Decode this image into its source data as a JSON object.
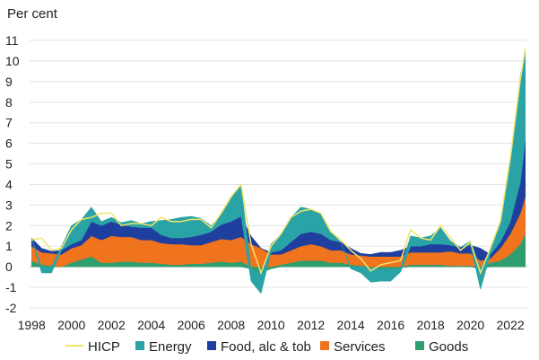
{
  "chart_data": {
    "type": "area",
    "subtype": "stacked",
    "ylabel": "Per cent",
    "ylim": [
      -2,
      11
    ],
    "yticks": [
      -2,
      -1,
      0,
      1,
      2,
      3,
      4,
      5,
      6,
      7,
      8,
      9,
      10,
      11
    ],
    "xlim": [
      1997.9,
      2022.85
    ],
    "xticks": [
      1998,
      2000,
      2002,
      2004,
      2006,
      2008,
      2010,
      2012,
      2014,
      2016,
      2018,
      2020,
      2022
    ],
    "xticklabels": [
      "1998",
      "2000",
      "2002",
      "2004",
      "2006",
      "2008",
      "2010",
      "2012",
      "2014",
      "2016",
      "2018",
      "2020",
      "2022"
    ],
    "grid": "horizontal",
    "legend_position": "bottom",
    "x": [
      1998.0,
      1998.5,
      1999.0,
      1999.5,
      2000.0,
      2000.5,
      2001.0,
      2001.5,
      2002.0,
      2002.5,
      2003.0,
      2003.5,
      2004.0,
      2004.5,
      2005.0,
      2005.5,
      2006.0,
      2006.5,
      2007.0,
      2007.5,
      2008.0,
      2008.5,
      2009.0,
      2009.5,
      2010.0,
      2010.5,
      2011.0,
      2011.5,
      2012.0,
      2012.5,
      2013.0,
      2013.5,
      2014.0,
      2014.5,
      2015.0,
      2015.5,
      2016.0,
      2016.5,
      2017.0,
      2017.5,
      2018.0,
      2018.5,
      2019.0,
      2019.5,
      2020.0,
      2020.5,
      2021.0,
      2021.5,
      2022.0,
      2022.5,
      2022.75
    ],
    "series": [
      {
        "name": "Goods",
        "color": "#2e9e6e",
        "values": [
          0.3,
          0.1,
          0.05,
          0.0,
          0.2,
          0.35,
          0.5,
          0.2,
          0.2,
          0.25,
          0.25,
          0.2,
          0.2,
          0.15,
          0.1,
          0.1,
          0.15,
          0.15,
          0.2,
          0.25,
          0.2,
          0.25,
          -0.1,
          -0.3,
          -0.1,
          0.1,
          0.2,
          0.3,
          0.3,
          0.3,
          0.2,
          0.2,
          0.1,
          0.05,
          -0.05,
          -0.1,
          -0.1,
          -0.05,
          0.1,
          0.1,
          0.1,
          0.1,
          0.05,
          0.05,
          0.05,
          -0.1,
          0.2,
          0.3,
          0.6,
          1.1,
          1.6
        ]
      },
      {
        "name": "Services",
        "color": "#f0731e",
        "values": [
          0.7,
          0.6,
          0.6,
          0.6,
          0.7,
          0.7,
          1.0,
          1.1,
          1.3,
          1.2,
          1.2,
          1.1,
          1.1,
          1.0,
          1.0,
          1.0,
          0.9,
          0.9,
          1.0,
          1.1,
          1.1,
          1.2,
          1.1,
          0.9,
          0.6,
          0.5,
          0.6,
          0.7,
          0.8,
          0.7,
          0.6,
          0.6,
          0.5,
          0.5,
          0.5,
          0.5,
          0.5,
          0.5,
          0.6,
          0.6,
          0.6,
          0.6,
          0.7,
          0.6,
          0.6,
          0.3,
          0.2,
          0.6,
          1.0,
          1.5,
          1.8
        ]
      },
      {
        "name": "Food, alc & tob",
        "color": "#1f3f9e",
        "values": [
          0.4,
          0.2,
          0.1,
          0.2,
          0.2,
          0.25,
          0.7,
          0.7,
          0.7,
          0.6,
          0.5,
          0.6,
          0.6,
          0.4,
          0.3,
          0.3,
          0.4,
          0.5,
          0.5,
          0.7,
          0.9,
          1.0,
          0.4,
          0.0,
          0.1,
          0.2,
          0.4,
          0.6,
          0.6,
          0.6,
          0.5,
          0.4,
          0.3,
          0.1,
          0.1,
          0.2,
          0.2,
          0.3,
          0.3,
          0.3,
          0.4,
          0.4,
          0.3,
          0.3,
          0.4,
          0.6,
          0.2,
          0.3,
          0.6,
          1.5,
          2.8
        ]
      },
      {
        "name": "Energy",
        "color": "#2aa3a6",
        "values": [
          0.0,
          -0.3,
          -0.3,
          0.2,
          0.9,
          1.0,
          0.7,
          0.2,
          0.2,
          0.1,
          0.3,
          0.2,
          0.3,
          0.7,
          0.9,
          1.0,
          1.0,
          0.8,
          0.3,
          0.5,
          1.2,
          1.5,
          -0.6,
          -1.0,
          0.4,
          0.8,
          1.2,
          1.3,
          1.1,
          1.0,
          0.4,
          0.0,
          -0.1,
          -0.3,
          -0.7,
          -0.6,
          -0.6,
          -0.2,
          0.5,
          0.4,
          0.4,
          0.8,
          0.2,
          0.0,
          0.2,
          -1.0,
          0.3,
          1.0,
          3.1,
          5.2,
          4.3
        ]
      },
      {
        "name": "HICP",
        "color": "#f2e46a",
        "values": [
          1.3,
          1.4,
          0.8,
          0.9,
          1.8,
          2.3,
          2.4,
          2.6,
          2.6,
          2.0,
          2.1,
          2.1,
          2.0,
          2.4,
          2.2,
          2.2,
          2.3,
          2.3,
          1.9,
          2.6,
          3.4,
          4.0,
          1.1,
          -0.3,
          1.0,
          1.6,
          2.4,
          2.7,
          2.8,
          2.6,
          1.7,
          1.3,
          0.8,
          0.4,
          -0.2,
          0.1,
          0.2,
          0.3,
          1.8,
          1.4,
          1.3,
          2.0,
          1.4,
          0.8,
          1.2,
          -0.3,
          0.9,
          2.2,
          5.3,
          9.1,
          10.6
        ]
      }
    ]
  },
  "legend": {
    "hicp": "HICP",
    "energy": "Energy",
    "food": "Food, alc & tob",
    "services": "Services",
    "goods": "Goods"
  }
}
